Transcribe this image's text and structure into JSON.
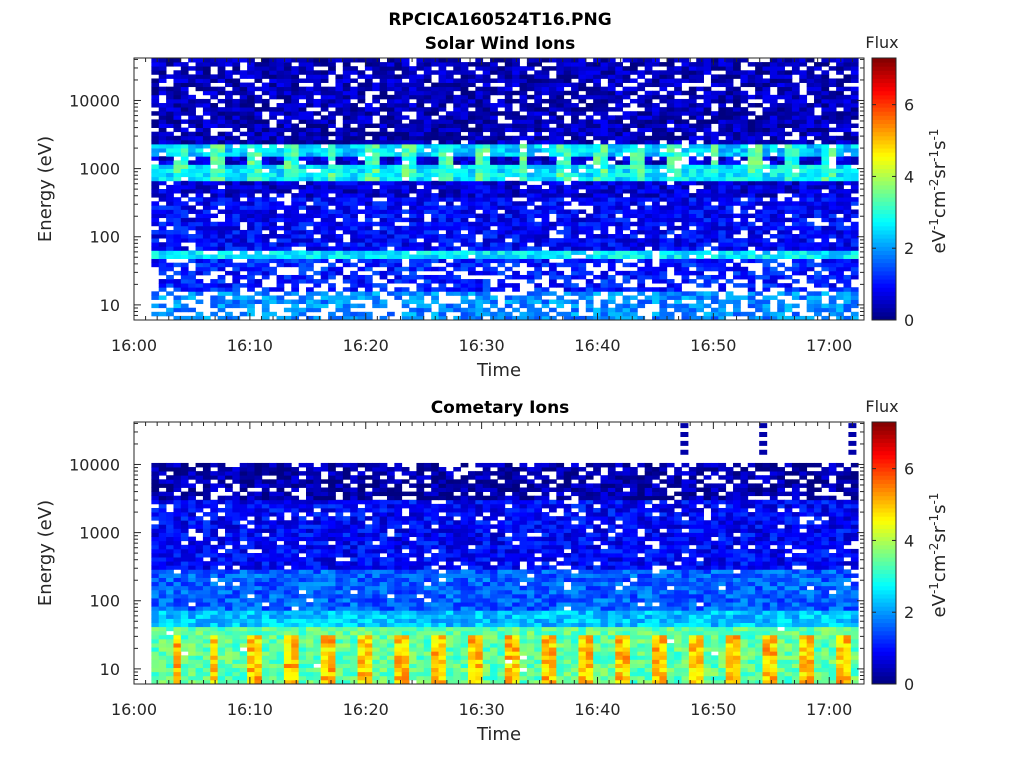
{
  "figure": {
    "title": "RPCICA160524T16.PNG"
  },
  "colorbar": {
    "label": "Flux",
    "units_base": "eV",
    "units_sup1": "-1",
    "units_mid": "cm",
    "units_sup2": "-2",
    "units_sr": "sr",
    "units_sup3": "-1",
    "units_s": "s",
    "units_sup4": "-1",
    "ticks": [
      "0",
      "2",
      "4",
      "6"
    ],
    "range": [
      0,
      7.3
    ],
    "colormap": "jet"
  },
  "chart_data": [
    {
      "type": "heatmap",
      "title": "Solar Wind Ions",
      "xlabel": "Time",
      "ylabel": "Energy (eV)",
      "x_ticks": [
        "16:00",
        "16:10",
        "16:20",
        "16:30",
        "16:40",
        "16:50",
        "17:00"
      ],
      "x_range_minutes": [
        0,
        63
      ],
      "data_time_range_minutes": [
        1.5,
        62.5
      ],
      "y_scale": "log",
      "y_ticks": [
        "10",
        "100",
        "1000",
        "10000"
      ],
      "y_range": [
        6,
        42000
      ],
      "bands": [
        {
          "e_min": 6,
          "e_max": 15,
          "level": 1.9,
          "white_fraction": 0.3
        },
        {
          "e_min": 15,
          "e_max": 45,
          "level": 1.1,
          "white_fraction": 0.3
        },
        {
          "e_min": 45,
          "e_max": 65,
          "level": 2.6,
          "white_fraction": 0.08
        },
        {
          "e_min": 65,
          "e_max": 400,
          "level": 0.9,
          "white_fraction": 0.12
        },
        {
          "e_min": 400,
          "e_max": 650,
          "level": 0.6,
          "white_fraction": 0.12
        },
        {
          "e_min": 650,
          "e_max": 1100,
          "level": 2.6,
          "white_fraction": 0.05
        },
        {
          "e_min": 1100,
          "e_max": 1600,
          "level": 0.6,
          "white_fraction": 0.12
        },
        {
          "e_min": 1600,
          "e_max": 2300,
          "level": 2.4,
          "white_fraction": 0.08
        },
        {
          "e_min": 2300,
          "e_max": 42000,
          "level": 0.4,
          "white_fraction": 0.16
        }
      ],
      "periodic_enhancement": {
        "e_min": 650,
        "e_max": 2300,
        "period_minutes": 3.3,
        "level": 3.2
      }
    },
    {
      "type": "heatmap",
      "title": "Cometary Ions",
      "xlabel": "Time",
      "ylabel": "Energy (eV)",
      "x_ticks": [
        "16:00",
        "16:10",
        "16:20",
        "16:30",
        "16:40",
        "16:50",
        "17:00"
      ],
      "x_range_minutes": [
        0,
        63
      ],
      "data_time_range_minutes": [
        1.5,
        62.5
      ],
      "y_scale": "log",
      "y_ticks": [
        "10",
        "100",
        "1000",
        "10000"
      ],
      "y_range": [
        6,
        42000
      ],
      "bands": [
        {
          "e_min": 6,
          "e_max": 40,
          "level": 3.4,
          "white_fraction": 0.01
        },
        {
          "e_min": 40,
          "e_max": 70,
          "level": 2.3,
          "white_fraction": 0.0
        },
        {
          "e_min": 70,
          "e_max": 300,
          "level": 1.6,
          "white_fraction": 0.03
        },
        {
          "e_min": 300,
          "e_max": 3000,
          "level": 0.9,
          "white_fraction": 0.1
        },
        {
          "e_min": 3000,
          "e_max": 11000,
          "level": 0.3,
          "white_fraction": 0.22
        }
      ],
      "periodic_enhancement": {
        "e_min": 6,
        "e_max": 30,
        "period_minutes": 3.2,
        "level": 5.0
      },
      "sparse_high_energy_times_minutes": [
        47.5,
        54.3,
        62.0
      ]
    }
  ]
}
